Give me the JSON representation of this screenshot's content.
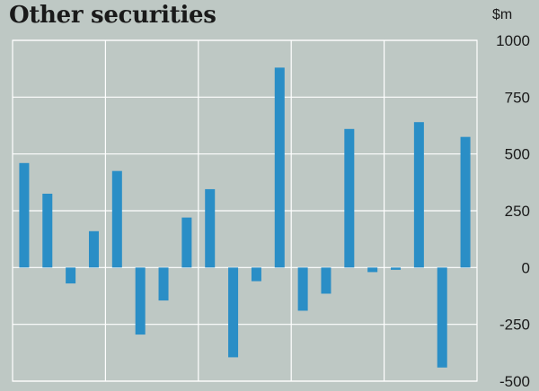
{
  "chart_data": {
    "type": "bar",
    "title": "Other securities",
    "unit": "$m",
    "ylim": [
      -500,
      1000
    ],
    "yticks": [
      1000,
      750,
      500,
      250,
      0,
      -250,
      -500
    ],
    "ytick_labels": [
      "1000",
      "750",
      "500",
      "250",
      "0",
      "-250",
      "-500"
    ],
    "grid": true,
    "values": [
      460,
      325,
      -70,
      160,
      425,
      -295,
      -145,
      220,
      345,
      -395,
      -60,
      880,
      -190,
      -115,
      610,
      -20,
      -10,
      640,
      -440,
      575
    ],
    "bar_color": "#2a8ec6"
  }
}
